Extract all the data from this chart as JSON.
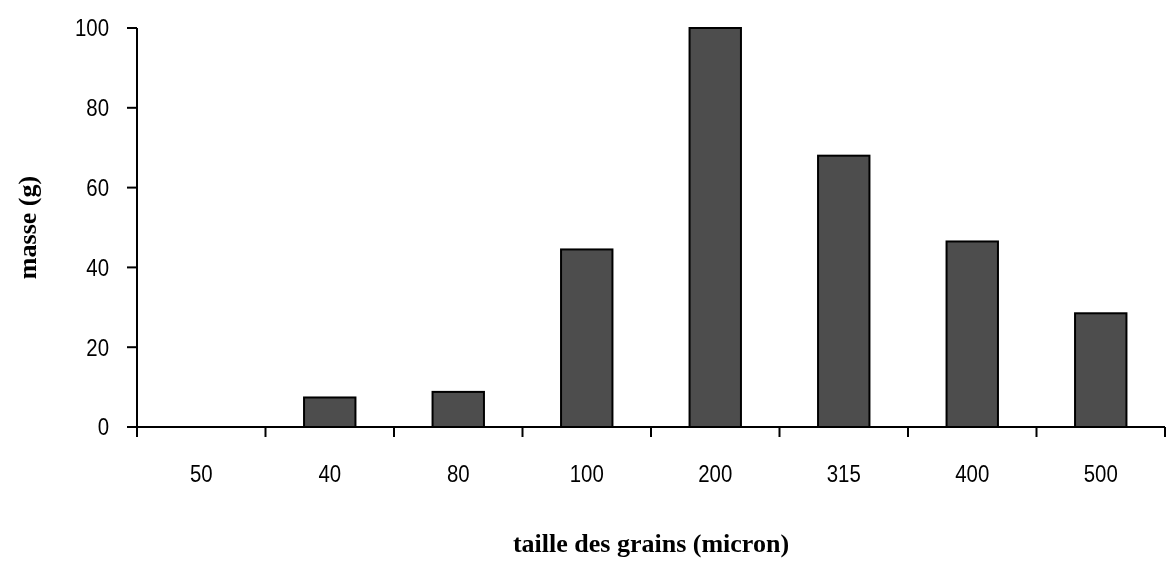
{
  "chart_data": {
    "type": "bar",
    "xlabel": "taille des grains (micron)",
    "ylabel": "masse (g)",
    "categories": [
      "50",
      "40",
      "80",
      "100",
      "200",
      "315",
      "400",
      "500"
    ],
    "values": [
      0,
      7.4,
      8.8,
      44.5,
      100,
      68,
      46.5,
      28.5
    ],
    "color": "#4d4d4d",
    "ylim": [
      0,
      100
    ],
    "yticks": [
      0,
      20,
      40,
      60,
      80,
      100
    ],
    "grid": false
  }
}
